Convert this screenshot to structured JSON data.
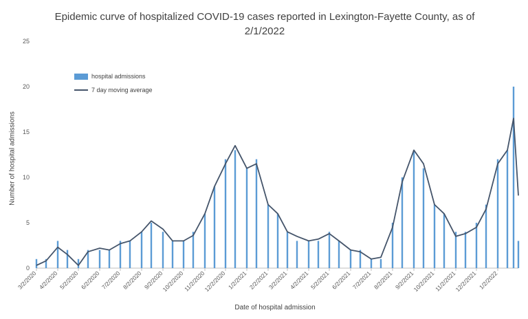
{
  "chart_data": {
    "type": "bar",
    "title": "Epidemic curve of hospitalized COVID-19 cases reported in Lexington-Fayette County, as of 2/1/2022",
    "xlabel": "Date of hospital admission",
    "ylabel": "Number of hospital admissions",
    "ylim": [
      0,
      25
    ],
    "yticks": [
      0,
      5,
      10,
      15,
      20,
      25
    ],
    "xlim": [
      "2020-03-02",
      "2022-02-01"
    ],
    "xticks": [
      "3/2/2020",
      "4/2/2020",
      "5/2/2020",
      "6/2/2020",
      "7/2/2020",
      "8/2/2020",
      "9/2/2020",
      "10/2/2020",
      "11/2/2020",
      "12/2/2020",
      "1/2/2021",
      "2/2/2021",
      "3/2/2021",
      "4/2/2021",
      "5/2/2021",
      "6/2/2021",
      "7/2/2021",
      "8/2/2021",
      "9/2/2021",
      "10/2/2021",
      "11/2/2021",
      "12/2/2021",
      "1/2/2022"
    ],
    "grid": false,
    "legend_position": "top-left",
    "series": [
      {
        "name": "hospital admissions",
        "kind": "bar",
        "color": "#5b9bd5",
        "x": [
          "2020-03-02",
          "2020-03-16",
          "2020-04-02",
          "2020-04-16",
          "2020-05-02",
          "2020-05-16",
          "2020-06-02",
          "2020-06-16",
          "2020-07-02",
          "2020-07-16",
          "2020-08-02",
          "2020-08-16",
          "2020-09-02",
          "2020-09-16",
          "2020-10-02",
          "2020-10-16",
          "2020-11-02",
          "2020-11-16",
          "2020-12-02",
          "2020-12-16",
          "2021-01-02",
          "2021-01-16",
          "2021-02-02",
          "2021-02-16",
          "2021-03-02",
          "2021-03-16",
          "2021-04-02",
          "2021-04-16",
          "2021-05-02",
          "2021-05-16",
          "2021-06-02",
          "2021-06-16",
          "2021-07-02",
          "2021-07-16",
          "2021-08-02",
          "2021-08-16",
          "2021-09-02",
          "2021-09-16",
          "2021-10-02",
          "2021-10-16",
          "2021-11-02",
          "2021-11-16",
          "2021-12-02",
          "2021-12-16",
          "2022-01-02",
          "2022-01-16",
          "2022-01-25",
          "2022-02-01"
        ],
        "values": [
          1,
          1,
          3,
          2,
          1,
          2,
          2,
          2,
          3,
          3,
          4,
          5,
          4,
          3,
          3,
          4,
          6,
          9,
          12,
          13,
          11,
          12,
          7,
          6,
          4,
          3,
          3,
          3,
          4,
          3,
          2,
          2,
          1,
          1,
          5,
          10,
          13,
          11,
          7,
          6,
          4,
          4,
          5,
          7,
          12,
          13,
          20,
          3
        ]
      },
      {
        "name": "7 day moving average",
        "kind": "line",
        "color": "#44546a",
        "x": [
          "2020-03-02",
          "2020-03-16",
          "2020-04-02",
          "2020-04-16",
          "2020-05-02",
          "2020-05-16",
          "2020-06-02",
          "2020-06-16",
          "2020-07-02",
          "2020-07-16",
          "2020-08-02",
          "2020-08-16",
          "2020-09-02",
          "2020-09-16",
          "2020-10-02",
          "2020-10-16",
          "2020-11-02",
          "2020-11-16",
          "2020-12-02",
          "2020-12-16",
          "2021-01-02",
          "2021-01-16",
          "2021-02-02",
          "2021-02-16",
          "2021-03-02",
          "2021-03-16",
          "2021-04-02",
          "2021-04-16",
          "2021-05-02",
          "2021-05-16",
          "2021-06-02",
          "2021-06-16",
          "2021-07-02",
          "2021-07-16",
          "2021-08-02",
          "2021-08-16",
          "2021-09-02",
          "2021-09-16",
          "2021-10-02",
          "2021-10-16",
          "2021-11-02",
          "2021-11-16",
          "2021-12-02",
          "2021-12-16",
          "2022-01-02",
          "2022-01-16",
          "2022-01-25",
          "2022-02-01"
        ],
        "values": [
          0.3,
          0.8,
          2.3,
          1.5,
          0.3,
          1.8,
          2.2,
          2.0,
          2.7,
          3.0,
          4.0,
          5.2,
          4.3,
          3.0,
          3.0,
          3.6,
          6.0,
          9.0,
          11.5,
          13.5,
          11.0,
          11.5,
          7.0,
          6.0,
          4.0,
          3.5,
          3.0,
          3.2,
          3.8,
          3.0,
          2.0,
          1.8,
          1.0,
          1.2,
          4.5,
          9.5,
          13.0,
          11.5,
          7.0,
          6.0,
          3.5,
          3.8,
          4.5,
          6.5,
          11.5,
          13.0,
          16.5,
          8.0
        ]
      }
    ]
  }
}
